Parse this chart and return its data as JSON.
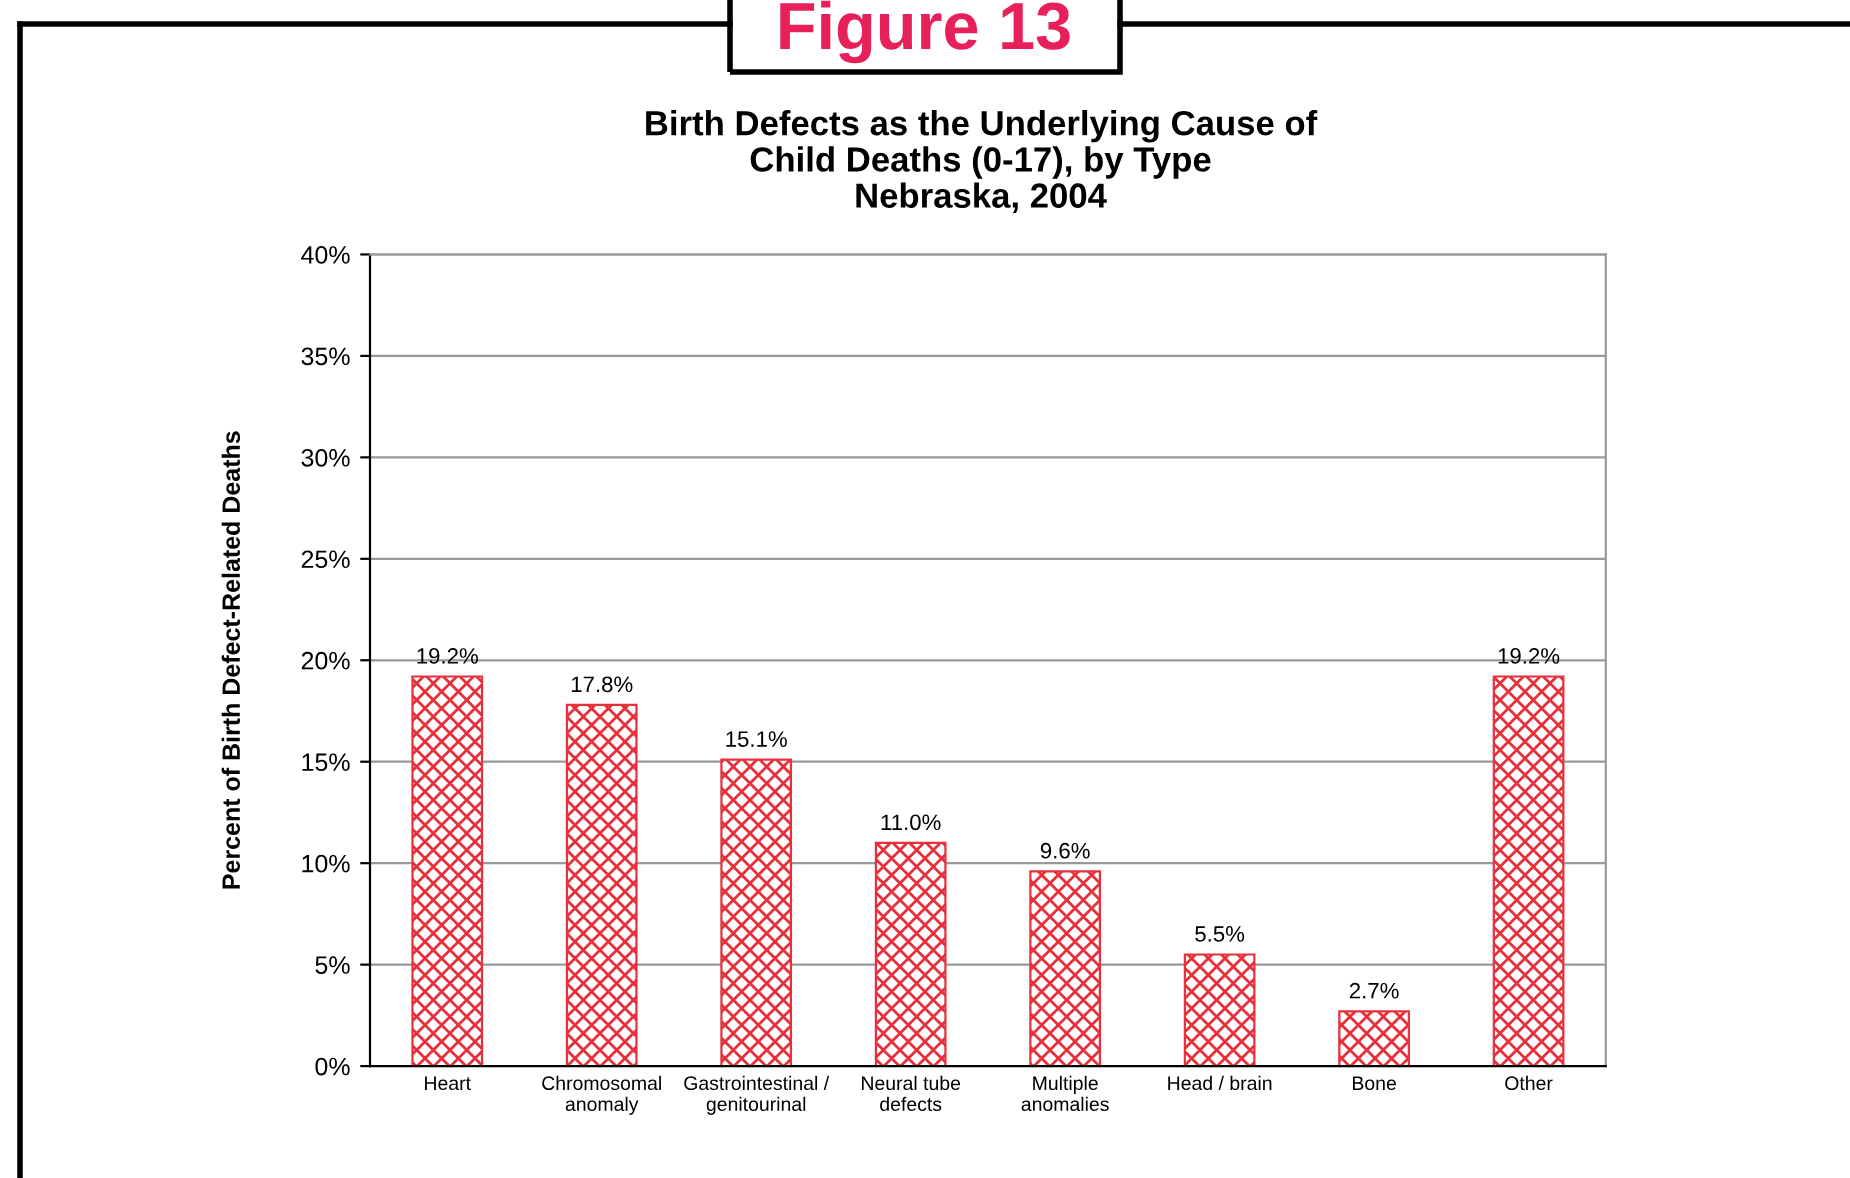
{
  "chart_data": {
    "type": "bar",
    "title": "Figure 13",
    "subtitle": "Birth Defects as the Underlying Cause of\nChild Deaths (0-17), by Type\nNebraska, 2004",
    "ylabel": "Percent of Birth Defect-Related Deaths",
    "categories": [
      "Heart",
      "Chromosomal\nanomaly",
      "Gastrointestinal /\ngenitourinal",
      "Neural tube\ndefects",
      "Multiple\nanomalies",
      "Head / brain",
      "Bone",
      "Other"
    ],
    "values": [
      19.2,
      17.8,
      15.1,
      11.0,
      9.6,
      5.5,
      2.7,
      19.2
    ],
    "value_labels": [
      "19.2%",
      "17.8%",
      "15.1%",
      "11.0%",
      "9.6%",
      "5.5%",
      "2.7%",
      "19.2%"
    ],
    "color": "#e8303a",
    "ylim": [
      0,
      40
    ],
    "yticks": [
      {
        "value": 0,
        "label": "0%"
      },
      {
        "value": 5,
        "label": "5%"
      },
      {
        "value": 10,
        "label": "10%"
      },
      {
        "value": 15,
        "label": "15%"
      },
      {
        "value": 20,
        "label": "20%"
      },
      {
        "value": 25,
        "label": "25%"
      },
      {
        "value": 30,
        "label": "30%"
      },
      {
        "value": 35,
        "label": "35%"
      },
      {
        "value": 40,
        "label": "40%"
      }
    ],
    "grid": "y",
    "legend": false
  }
}
